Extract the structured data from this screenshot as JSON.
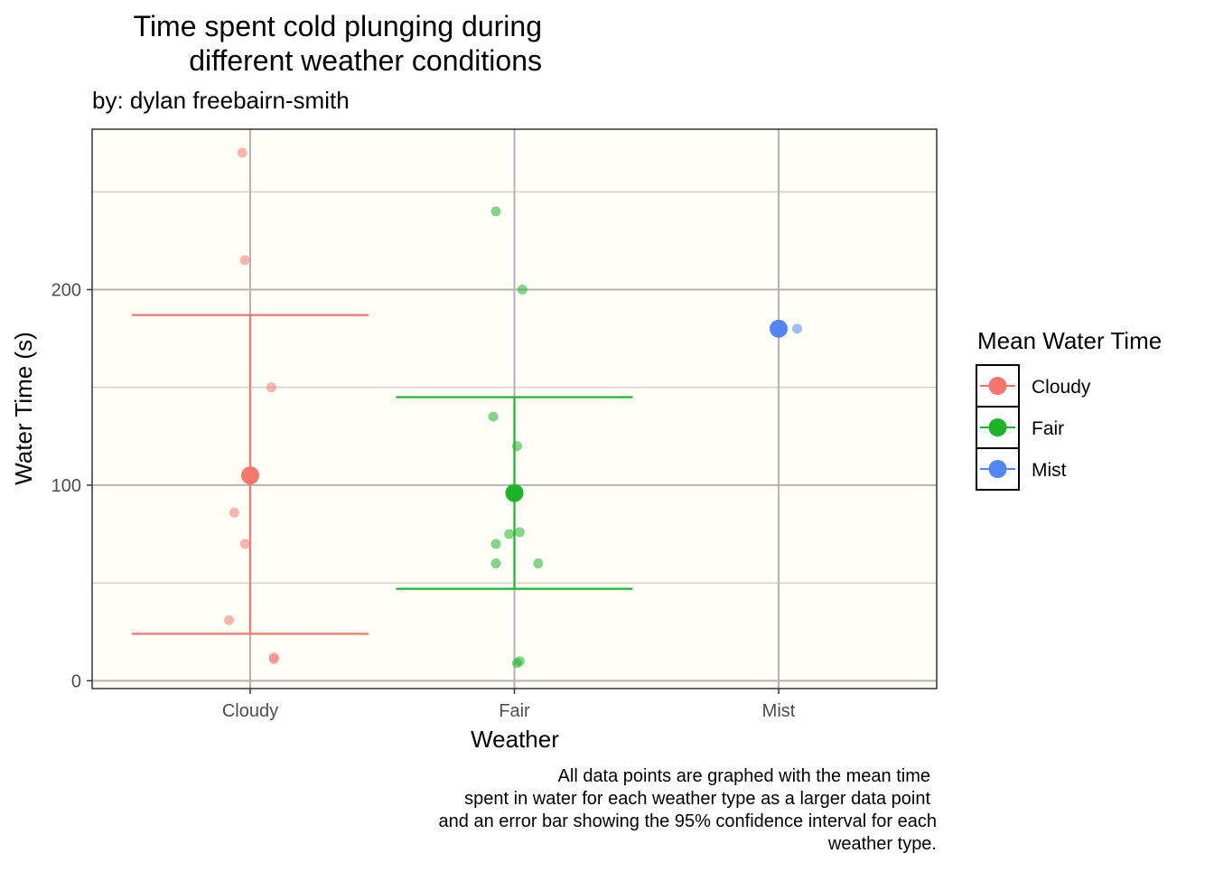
{
  "chart_data": {
    "type": "scatter",
    "title_lines": [
      "Time spent cold plunging during",
      "different weather conditions"
    ],
    "subtitle": "by: dylan freebairn-smith",
    "xlabel": "Weather",
    "ylabel": "Water Time (s)",
    "categories": [
      "Cloudy",
      "Fair",
      "Mist"
    ],
    "ylim": [
      -4,
      282
    ],
    "yticks": [
      0,
      100,
      200
    ],
    "grid": true,
    "background": "#fffff8",
    "series": [
      {
        "name": "Cloudy",
        "color": "#f8766d",
        "points": [
          {
            "offset": -0.03,
            "y": 270
          },
          {
            "offset": -0.02,
            "y": 215
          },
          {
            "offset": 0.08,
            "y": 150
          },
          {
            "offset": -0.06,
            "y": 86
          },
          {
            "offset": -0.02,
            "y": 70
          },
          {
            "offset": -0.08,
            "y": 31
          },
          {
            "offset": 0.09,
            "y": 12
          },
          {
            "offset": 0.09,
            "y": 11
          }
        ],
        "mean": 105,
        "ci": [
          24,
          187
        ]
      },
      {
        "name": "Fair",
        "color": "#1db32a",
        "points": [
          {
            "offset": -0.07,
            "y": 240
          },
          {
            "offset": 0.03,
            "y": 200
          },
          {
            "offset": -0.08,
            "y": 135
          },
          {
            "offset": 0.01,
            "y": 120
          },
          {
            "offset": -0.02,
            "y": 75
          },
          {
            "offset": 0.02,
            "y": 76
          },
          {
            "offset": -0.07,
            "y": 70
          },
          {
            "offset": -0.07,
            "y": 60
          },
          {
            "offset": 0.09,
            "y": 60
          },
          {
            "offset": 0.02,
            "y": 10
          },
          {
            "offset": 0.01,
            "y": 9
          }
        ],
        "mean": 96,
        "ci": [
          47,
          145
        ]
      },
      {
        "name": "Mist",
        "color": "#5286f5",
        "points": [
          {
            "offset": 0.07,
            "y": 180
          }
        ],
        "mean": 180,
        "ci": null
      }
    ],
    "legend": {
      "title": "Mean Water Time",
      "position": "right",
      "items": [
        "Cloudy",
        "Fair",
        "Mist"
      ]
    },
    "caption_lines": [
      "All data points are graphed with the mean time",
      "spent in water for each weather type as a larger data point",
      "and an error bar showing the 95% confidence interval for each",
      "weather type."
    ]
  }
}
